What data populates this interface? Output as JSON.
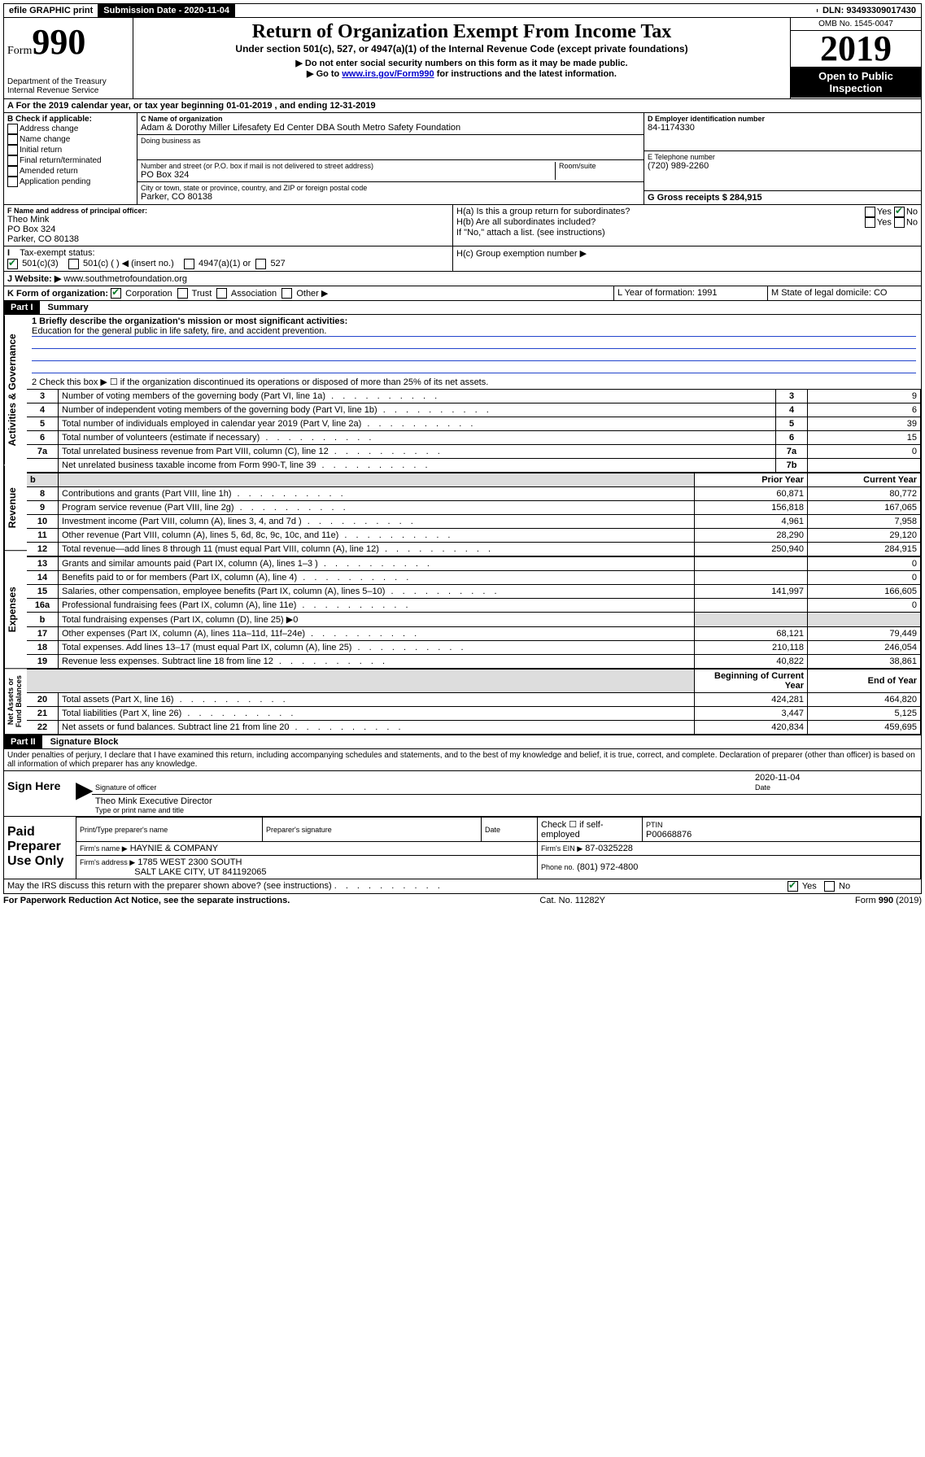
{
  "top": {
    "efile": "efile GRAPHIC print",
    "submission_label": "Submission Date - 2020-11-04",
    "dln_label": "DLN: 93493309017430"
  },
  "header": {
    "form_prefix": "Form",
    "form_number": "990",
    "dept": "Department of the Treasury\nInternal Revenue Service",
    "title": "Return of Organization Exempt From Income Tax",
    "subtitle": "Under section 501(c), 527, or 4947(a)(1) of the Internal Revenue Code (except private foundations)",
    "note1": "▶ Do not enter social security numbers on this form as it may be made public.",
    "note2_pre": "▶ Go to ",
    "note2_link": "www.irs.gov/Form990",
    "note2_post": " for instructions and the latest information.",
    "omb": "OMB No. 1545-0047",
    "year": "2019",
    "open": "Open to Public Inspection"
  },
  "line_a": "A For the 2019 calendar year, or tax year beginning 01-01-2019    , and ending 12-31-2019",
  "box_b": {
    "title": "B Check if applicable:",
    "items": [
      "Address change",
      "Name change",
      "Initial return",
      "Final return/terminated",
      "Amended return",
      "Application pending"
    ]
  },
  "box_c": {
    "label": "C Name of organization",
    "name": "Adam & Dorothy Miller Lifesafety Ed Center DBA South Metro Safety Foundation",
    "dba_label": "Doing business as",
    "addr_label": "Number and street (or P.O. box if mail is not delivered to street address)",
    "room_label": "Room/suite",
    "addr": "PO Box 324",
    "city_label": "City or town, state or province, country, and ZIP or foreign postal code",
    "city": "Parker, CO  80138"
  },
  "box_d": {
    "label": "D Employer identification number",
    "value": "84-1174330"
  },
  "box_e": {
    "label": "E Telephone number",
    "value": "(720) 989-2260"
  },
  "box_g": {
    "label": "G Gross receipts $ 284,915"
  },
  "box_f": {
    "label": "F  Name and address of principal officer:",
    "name": "Theo Mink",
    "addr1": "PO Box 324",
    "addr2": "Parker, CO  80138"
  },
  "box_h": {
    "ha": "H(a)  Is this a group return for subordinates?",
    "hb": "H(b)  Are all subordinates included?",
    "hb_note": "If \"No,\" attach a list. (see instructions)",
    "hc": "H(c)  Group exemption number ▶"
  },
  "tax_status": {
    "label": "Tax-exempt status:",
    "opt1": "501(c)(3)",
    "opt2": "501(c) (  ) ◀ (insert no.)",
    "opt3": "4947(a)(1) or",
    "opt4": "527"
  },
  "website": {
    "label": "J    Website: ▶",
    "value": "www.southmetrofoundation.org"
  },
  "line_k": {
    "label": "K Form of organization:",
    "opts": [
      "Corporation",
      "Trust",
      "Association",
      "Other ▶"
    ],
    "l_label": "L Year of formation: 1991",
    "m_label": "M State of legal domicile: CO"
  },
  "part1": {
    "header": "Part I",
    "title": "Summary",
    "q1_label": "1  Briefly describe the organization's mission or most significant activities:",
    "q1_text": "Education for the general public in life safety, fire, and accident prevention.",
    "q2": "2   Check this box ▶ ☐  if the organization discontinued its operations or disposed of more than 25% of its net assets.",
    "vert1": "Activities & Governance",
    "vert2": "Revenue",
    "vert3": "Expenses",
    "vert4": "Net Assets or Fund Balances",
    "rows_gov": [
      {
        "n": "3",
        "t": "Number of voting members of the governing body (Part VI, line 1a)",
        "box": "3",
        "v": "9"
      },
      {
        "n": "4",
        "t": "Number of independent voting members of the governing body (Part VI, line 1b)",
        "box": "4",
        "v": "6"
      },
      {
        "n": "5",
        "t": "Total number of individuals employed in calendar year 2019 (Part V, line 2a)",
        "box": "5",
        "v": "39"
      },
      {
        "n": "6",
        "t": "Total number of volunteers (estimate if necessary)",
        "box": "6",
        "v": "15"
      },
      {
        "n": "7a",
        "t": "Total unrelated business revenue from Part VIII, column (C), line 12",
        "box": "7a",
        "v": "0"
      },
      {
        "n": "",
        "t": "Net unrelated business taxable income from Form 990-T, line 39",
        "box": "7b",
        "v": ""
      }
    ],
    "col_prior": "Prior Year",
    "col_current": "Current Year",
    "col_beg": "Beginning of Current Year",
    "col_end": "End of Year",
    "rows_rev": [
      {
        "n": "8",
        "t": "Contributions and grants (Part VIII, line 1h)",
        "p": "60,871",
        "c": "80,772"
      },
      {
        "n": "9",
        "t": "Program service revenue (Part VIII, line 2g)",
        "p": "156,818",
        "c": "167,065"
      },
      {
        "n": "10",
        "t": "Investment income (Part VIII, column (A), lines 3, 4, and 7d )",
        "p": "4,961",
        "c": "7,958"
      },
      {
        "n": "11",
        "t": "Other revenue (Part VIII, column (A), lines 5, 6d, 8c, 9c, 10c, and 11e)",
        "p": "28,290",
        "c": "29,120"
      },
      {
        "n": "12",
        "t": "Total revenue—add lines 8 through 11 (must equal Part VIII, column (A), line 12)",
        "p": "250,940",
        "c": "284,915"
      }
    ],
    "rows_exp": [
      {
        "n": "13",
        "t": "Grants and similar amounts paid (Part IX, column (A), lines 1–3 )",
        "p": "",
        "c": "0"
      },
      {
        "n": "14",
        "t": "Benefits paid to or for members (Part IX, column (A), line 4)",
        "p": "",
        "c": "0"
      },
      {
        "n": "15",
        "t": "Salaries, other compensation, employee benefits (Part IX, column (A), lines 5–10)",
        "p": "141,997",
        "c": "166,605"
      },
      {
        "n": "16a",
        "t": "Professional fundraising fees (Part IX, column (A), line 11e)",
        "p": "",
        "c": "0"
      },
      {
        "n": "b",
        "t": "Total fundraising expenses (Part IX, column (D), line 25) ▶0",
        "p": "SHADE",
        "c": "SHADE"
      },
      {
        "n": "17",
        "t": "Other expenses (Part IX, column (A), lines 11a–11d, 11f–24e)",
        "p": "68,121",
        "c": "79,449"
      },
      {
        "n": "18",
        "t": "Total expenses. Add lines 13–17 (must equal Part IX, column (A), line 25)",
        "p": "210,118",
        "c": "246,054"
      },
      {
        "n": "19",
        "t": "Revenue less expenses. Subtract line 18 from line 12",
        "p": "40,822",
        "c": "38,861"
      }
    ],
    "rows_net": [
      {
        "n": "20",
        "t": "Total assets (Part X, line 16)",
        "p": "424,281",
        "c": "464,820"
      },
      {
        "n": "21",
        "t": "Total liabilities (Part X, line 26)",
        "p": "3,447",
        "c": "5,125"
      },
      {
        "n": "22",
        "t": "Net assets or fund balances. Subtract line 21 from line 20",
        "p": "420,834",
        "c": "459,695"
      }
    ]
  },
  "part2": {
    "header": "Part II",
    "title": "Signature Block",
    "declaration": "Under penalties of perjury, I declare that I have examined this return, including accompanying schedules and statements, and to the best of my knowledge and belief, it is true, correct, and complete. Declaration of preparer (other than officer) is based on all information of which preparer has any knowledge.",
    "sign_here": "Sign Here",
    "sig_officer": "Signature of officer",
    "sig_date": "2020-11-04",
    "date_label": "Date",
    "officer_name": "Theo Mink  Executive Director",
    "type_name": "Type or print name and title",
    "paid": "Paid Preparer Use Only",
    "prep_name_label": "Print/Type preparer's name",
    "prep_sig_label": "Preparer's signature",
    "check_self": "Check ☐ if self-employed",
    "ptin_label": "PTIN",
    "ptin": "P00668876",
    "firm_name_label": "Firm's name    ▶",
    "firm_name": "HAYNIE & COMPANY",
    "firm_ein_label": "Firm's EIN ▶",
    "firm_ein": "87-0325228",
    "firm_addr_label": "Firm's address ▶",
    "firm_addr1": "1785 WEST 2300 SOUTH",
    "firm_addr2": "SALT LAKE CITY, UT  841192065",
    "firm_phone_label": "Phone no.",
    "firm_phone": "(801) 972-4800",
    "discuss": "May the IRS discuss this return with the preparer shown above? (see instructions)",
    "yes": "Yes",
    "no": "No"
  },
  "footer": {
    "left": "For Paperwork Reduction Act Notice, see the separate instructions.",
    "mid": "Cat. No. 11282Y",
    "right": "Form 990 (2019)"
  }
}
